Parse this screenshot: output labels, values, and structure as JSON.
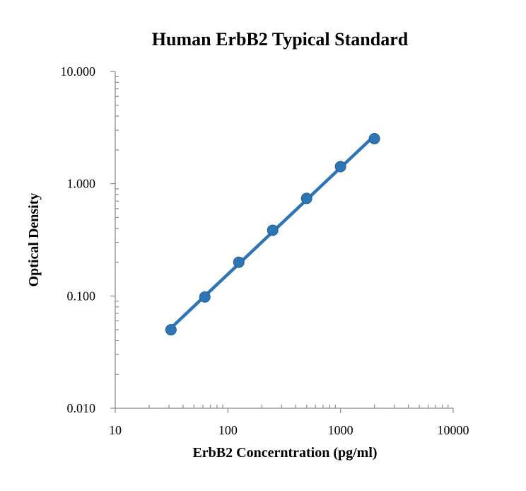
{
  "chart_data": {
    "type": "scatter",
    "title": "Human ErbB2 Typical Standard",
    "xlabel": "ErbB2 Concerntration (pg/ml)",
    "ylabel": "Optical Density",
    "x_scale": "log",
    "y_scale": "log",
    "xlim": [
      10,
      10000
    ],
    "ylim": [
      0.01,
      10
    ],
    "x_ticks": [
      "10",
      "100",
      "1000",
      "10000"
    ],
    "y_ticks": [
      "0.010",
      "0.100",
      "1.000",
      "10.000"
    ],
    "grid": false,
    "legend": "none",
    "series": [
      {
        "x": [
          31.25,
          62.5,
          125,
          250,
          500,
          1000,
          2000
        ],
        "y": [
          0.05,
          0.098,
          0.2,
          0.385,
          0.74,
          1.42,
          2.52
        ],
        "color": "#2e75b6",
        "marker": "circle",
        "fit_line": true
      }
    ]
  }
}
